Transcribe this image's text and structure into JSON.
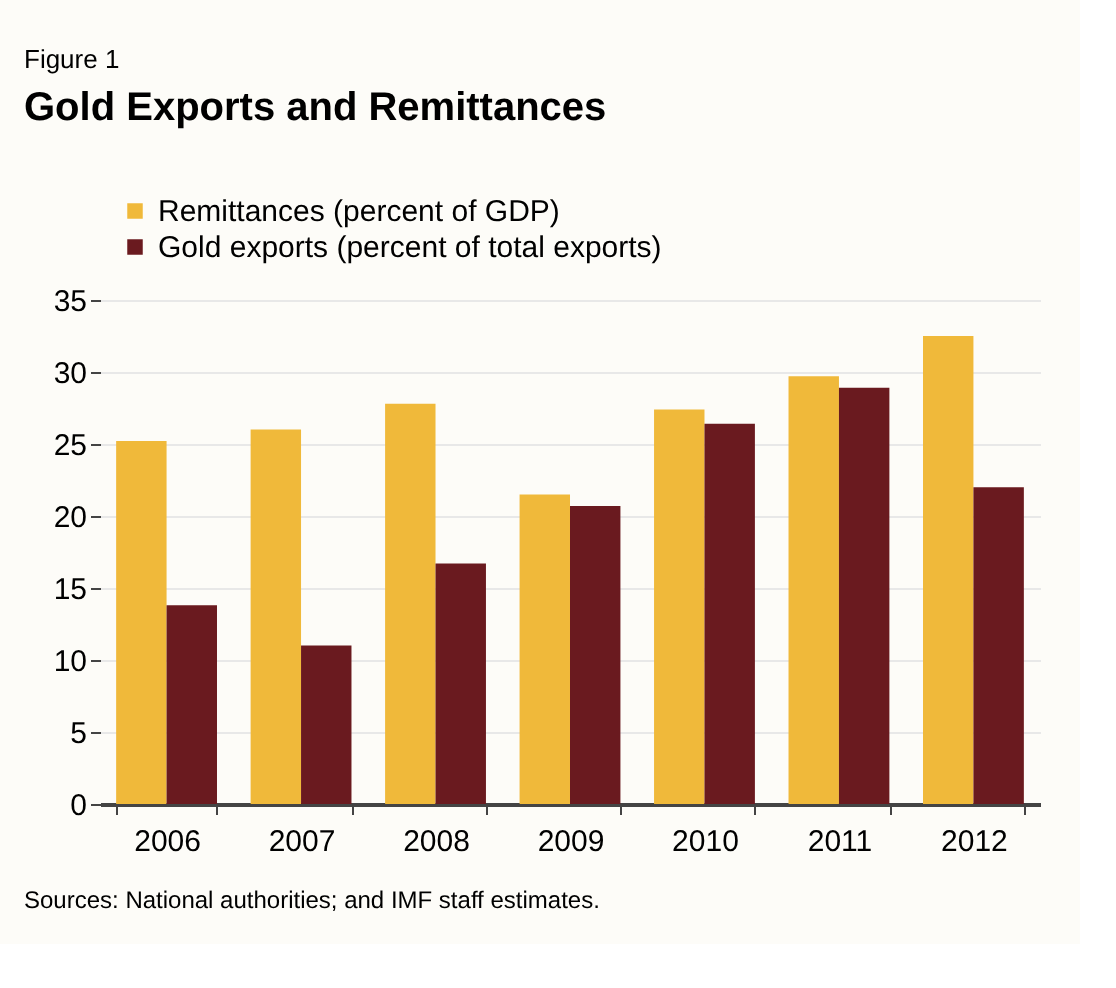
{
  "chart_data": {
    "type": "bar",
    "title": "Gold Exports and Remittances",
    "annotations": [
      "Figure 1",
      "Sources: National authorities; and IMF staff estimates."
    ],
    "categories": [
      "2006",
      "2007",
      "2008",
      "2009",
      "2010",
      "2011",
      "2012"
    ],
    "series": [
      {
        "name": "Remittances (percent of GDP)",
        "color": "#f0b93a",
        "values": [
          25.2,
          26.0,
          27.8,
          21.5,
          27.4,
          29.7,
          32.5
        ]
      },
      {
        "name": "Gold exports (percent of total exports)",
        "color": "#6a1a1f",
        "values": [
          13.8,
          11.0,
          16.7,
          20.7,
          26.4,
          28.9,
          22.0
        ]
      }
    ],
    "ylim": [
      0,
      35
    ],
    "yticks": [
      0,
      5,
      10,
      15,
      20,
      25,
      30,
      35
    ],
    "grid": "y",
    "legend": "top left"
  }
}
